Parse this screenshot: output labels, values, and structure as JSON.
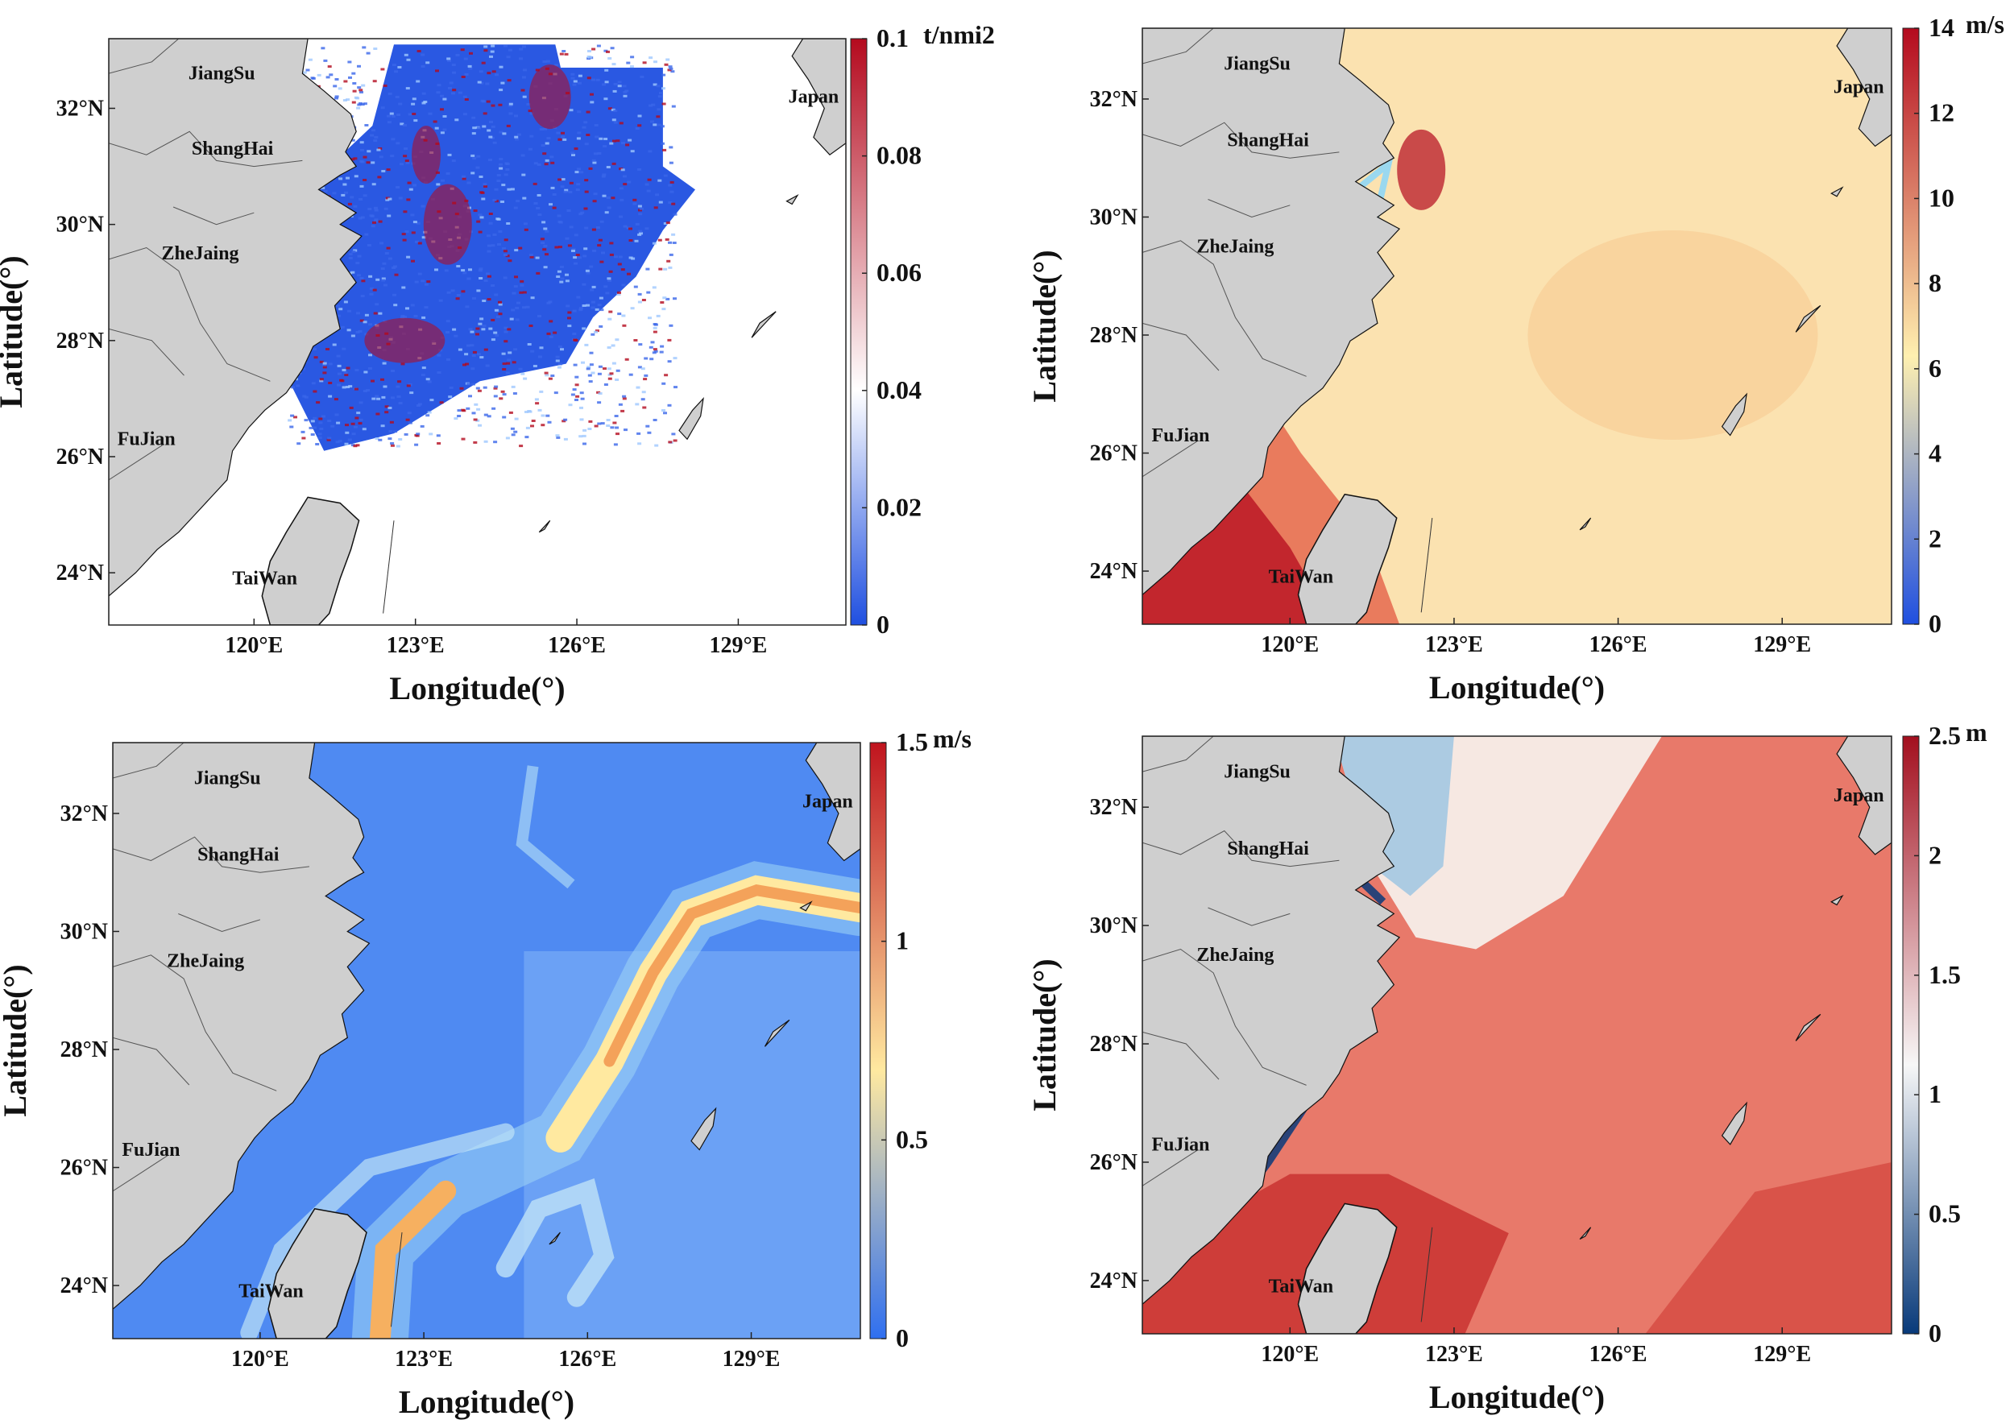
{
  "panels": [
    {
      "id": "catch",
      "unit": "t/nmi2",
      "colorbar_ticks": [
        "0.1",
        "0.08",
        "0.06",
        "0.04",
        "0.02",
        "0"
      ],
      "colormap": "blue-white-red",
      "field": "sparse catch density",
      "colors": {
        "low": "#1f4fe0",
        "mid": "#ffffff",
        "high": "#b40a1e"
      }
    },
    {
      "id": "wind",
      "unit": "m/s",
      "colorbar_ticks": [
        "14",
        "12",
        "10",
        "8",
        "6",
        "4",
        "2",
        "0"
      ],
      "colormap": "blue-yellow-red",
      "field": "wind speed",
      "colors": {
        "low": "#1f4fe0",
        "mid": "#fff0b0",
        "high": "#b40a1e"
      }
    },
    {
      "id": "current",
      "unit": "m/s",
      "colorbar_ticks": [
        "1.5",
        "1",
        "0.5",
        "0"
      ],
      "colormap": "blue-yellow-red",
      "field": "current speed",
      "colors": {
        "low": "#2f6ff0",
        "mid": "#ffe9a0",
        "high": "#c0141e"
      }
    },
    {
      "id": "wave",
      "unit": "m",
      "colorbar_ticks": [
        "2.5",
        "2",
        "1.5",
        "1",
        "0.5",
        "0"
      ],
      "colormap": "dark-blue-white-red",
      "field": "wave height",
      "colors": {
        "low": "#083a7a",
        "mid": "#f7f7f7",
        "high": "#a30f1e"
      }
    }
  ],
  "axes": {
    "xlabel": "Longitude(°)",
    "ylabel": "Latitude(°)",
    "lon_ticks": [
      "120°E",
      "123°E",
      "126°E",
      "129°E"
    ],
    "lat_ticks": [
      "32°N",
      "30°N",
      "28°N",
      "26°N",
      "24°N"
    ]
  },
  "regions": [
    "JiangSu",
    "ShangHai",
    "ZheJaing",
    "FuJian",
    "TaiWan",
    "Japan"
  ],
  "colors": {
    "land": "#cfcfcf",
    "coast": "#111111",
    "frame": "#222222"
  }
}
